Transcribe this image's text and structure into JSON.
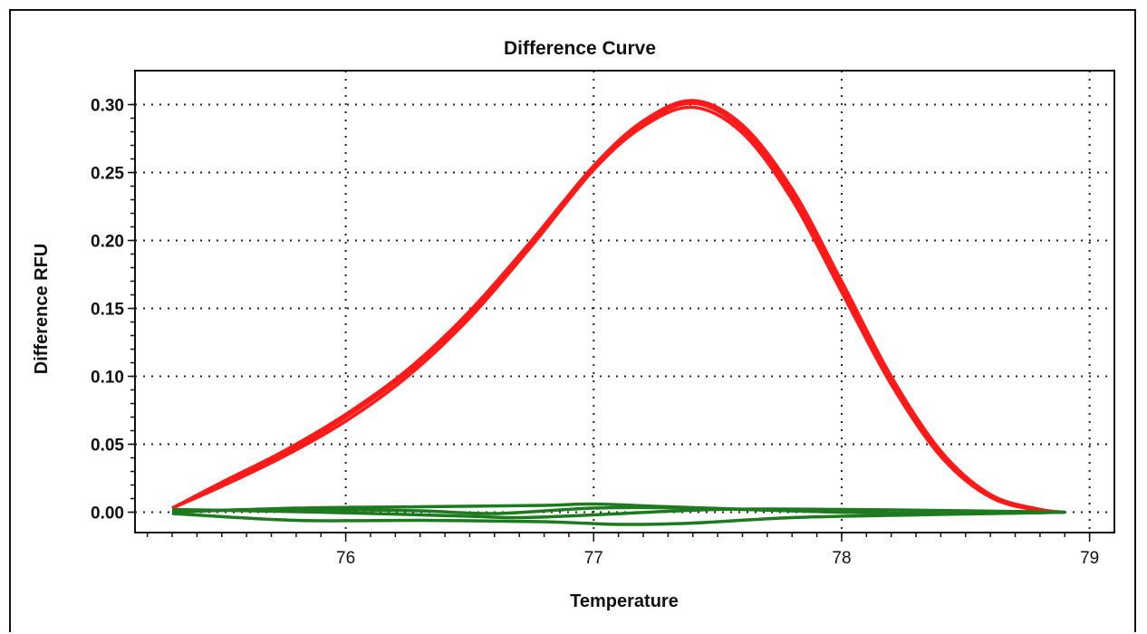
{
  "chart_data": {
    "type": "line",
    "title": "Difference Curve",
    "xlabel": "Temperature",
    "ylabel": "Difference RFU",
    "xlim": [
      75.15,
      79.1
    ],
    "ylim": [
      -0.015,
      0.325
    ],
    "xticks": [
      76,
      77,
      78,
      79
    ],
    "xtick_labels": [
      "76",
      "77",
      "78",
      "79"
    ],
    "yticks": [
      0.0,
      0.05,
      0.1,
      0.15,
      0.2,
      0.25,
      0.3
    ],
    "ytick_labels": [
      "0.00",
      "0.05",
      "0.10",
      "0.15",
      "0.20",
      "0.25",
      "0.30"
    ],
    "grid": true,
    "colors": {
      "positive": "#ff1a1a",
      "negative": "#1e7a1e"
    },
    "series": [
      {
        "color": "#ff1a1a",
        "x": [
          75.3,
          75.5,
          75.75,
          76.0,
          76.25,
          76.5,
          76.75,
          77.0,
          77.2,
          77.4,
          77.6,
          77.8,
          78.0,
          78.2,
          78.4,
          78.6,
          78.8,
          78.9
        ],
        "y": [
          0.003,
          0.022,
          0.045,
          0.072,
          0.105,
          0.148,
          0.2,
          0.255,
          0.288,
          0.303,
          0.285,
          0.238,
          0.17,
          0.1,
          0.045,
          0.013,
          0.002,
          0.0
        ]
      },
      {
        "color": "#ff1a1a",
        "x": [
          75.3,
          75.5,
          75.75,
          76.0,
          76.25,
          76.5,
          76.75,
          77.0,
          77.2,
          77.4,
          77.6,
          77.8,
          78.0,
          78.2,
          78.4,
          78.6,
          78.8,
          78.9
        ],
        "y": [
          0.003,
          0.019,
          0.041,
          0.067,
          0.1,
          0.143,
          0.196,
          0.252,
          0.284,
          0.298,
          0.279,
          0.23,
          0.162,
          0.094,
          0.041,
          0.011,
          0.001,
          0.0
        ]
      },
      {
        "color": "#ff1a1a",
        "x": [
          75.3,
          75.5,
          75.75,
          76.0,
          76.25,
          76.5,
          76.75,
          77.0,
          77.2,
          77.4,
          77.6,
          77.8,
          78.0,
          78.2,
          78.4,
          78.6,
          78.8,
          78.9
        ],
        "y": [
          0.003,
          0.021,
          0.043,
          0.07,
          0.103,
          0.146,
          0.198,
          0.254,
          0.286,
          0.301,
          0.282,
          0.234,
          0.166,
          0.097,
          0.043,
          0.012,
          0.002,
          0.0
        ]
      },
      {
        "color": "#1e7a1e",
        "x": [
          75.3,
          75.8,
          76.3,
          76.8,
          77.0,
          77.3,
          77.8,
          78.3,
          78.9
        ],
        "y": [
          0.0,
          0.003,
          0.004,
          0.005,
          0.006,
          0.004,
          0.001,
          -0.001,
          0.0
        ]
      },
      {
        "color": "#1e7a1e",
        "x": [
          75.3,
          75.8,
          76.3,
          76.8,
          77.1,
          77.4,
          77.8,
          78.3,
          78.9
        ],
        "y": [
          -0.001,
          -0.006,
          -0.006,
          -0.007,
          -0.009,
          -0.008,
          -0.004,
          -0.002,
          0.0
        ]
      },
      {
        "color": "#1e7a1e",
        "x": [
          75.3,
          75.9,
          76.5,
          76.7,
          77.0,
          77.5,
          78.0,
          78.5,
          78.9
        ],
        "y": [
          0.002,
          0.0,
          -0.003,
          -0.004,
          -0.002,
          0.002,
          0.002,
          0.001,
          0.0
        ]
      },
      {
        "color": "#1e7a1e",
        "x": [
          75.3,
          75.8,
          76.3,
          76.6,
          77.0,
          77.4,
          78.0,
          78.5,
          78.9
        ],
        "y": [
          0.001,
          0.002,
          0.001,
          -0.001,
          0.003,
          0.003,
          0.0,
          -0.001,
          0.0
        ]
      }
    ]
  }
}
